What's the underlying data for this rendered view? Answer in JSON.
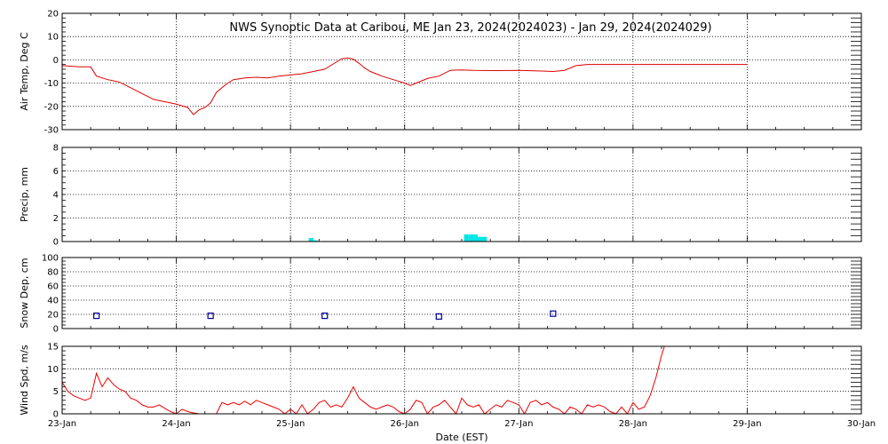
{
  "title": "NWS Synoptic Data at Caribou, ME   Jan 23, 2024(2024023) - Jan 29, 2024(2024029)",
  "xlabel": "Date (EST)",
  "x_ticks": [
    "23-Jan",
    "24-Jan",
    "25-Jan",
    "26-Jan",
    "27-Jan",
    "28-Jan",
    "29-Jan",
    "30-Jan"
  ],
  "colors": {
    "temp": "#dd0000",
    "precip": "#00e5e5",
    "snow": "#000099",
    "wind": "#ee0000",
    "grid": "#000000"
  },
  "chart_data": [
    {
      "type": "line",
      "ylabel": "Air Temp, Deg C",
      "ylim": [
        -30,
        20
      ],
      "yticks": [
        20,
        10,
        0,
        -10,
        -20,
        -30
      ],
      "x_unit": "days since 23-Jan 00:00",
      "x": [
        0,
        0.15,
        0.25,
        0.3,
        0.4,
        0.5,
        0.6,
        0.7,
        0.8,
        0.9,
        1.0,
        1.1,
        1.15,
        1.2,
        1.25,
        1.3,
        1.35,
        1.4,
        1.45,
        1.5,
        1.6,
        1.7,
        1.8,
        1.9,
        2.0,
        2.1,
        2.2,
        2.3,
        2.4,
        2.45,
        2.5,
        2.55,
        2.6,
        2.65,
        2.7,
        2.75,
        2.8,
        2.9,
        3.0,
        3.05,
        3.1,
        3.2,
        3.3,
        3.4,
        3.5,
        3.6,
        3.8,
        4.0,
        4.2,
        4.3,
        4.4,
        4.5,
        4.6,
        4.8,
        5.0,
        5.5,
        6.0
      ],
      "values": [
        -2.5,
        -3,
        -3,
        -7,
        -8.5,
        -9.5,
        -12,
        -14.5,
        -17,
        -18,
        -19,
        -20.5,
        -23.5,
        -21.5,
        -20.5,
        -18.5,
        -14,
        -12,
        -10,
        -8.5,
        -7.8,
        -7.5,
        -7.8,
        -7,
        -6.5,
        -6,
        -5,
        -4,
        -1,
        0.5,
        0.8,
        0.3,
        -1.5,
        -3.5,
        -5,
        -6,
        -7,
        -8.5,
        -10,
        -11,
        -10,
        -8,
        -7,
        -4.5,
        -4.3,
        -4.5,
        -4.6,
        -4.5,
        -4.8,
        -5,
        -4.5,
        -2.5,
        -2,
        -2,
        -2,
        -2,
        -2
      ]
    },
    {
      "type": "bar",
      "ylabel": "Precip, mm",
      "ylim": [
        0,
        8
      ],
      "yticks": [
        8,
        6,
        4,
        2,
        0
      ],
      "x_unit": "days since 23-Jan 00:00",
      "bars": [
        {
          "x0": 2.16,
          "x1": 2.2,
          "value": 0.3
        },
        {
          "x0": 2.2,
          "x1": 2.24,
          "value": 0.1
        },
        {
          "x0": 3.52,
          "x1": 3.56,
          "value": 0.6
        },
        {
          "x0": 3.56,
          "x1": 3.64,
          "value": 0.6
        },
        {
          "x0": 3.64,
          "x1": 3.72,
          "value": 0.4
        }
      ]
    },
    {
      "type": "scatter",
      "ylabel": "Snow Dep, cm",
      "ylim": [
        0,
        100
      ],
      "yticks": [
        100,
        80,
        60,
        40,
        20,
        0
      ],
      "x_unit": "days since 23-Jan 00:00",
      "x": [
        0.3,
        1.3,
        2.3,
        3.3,
        4.3
      ],
      "values": [
        18,
        18,
        18,
        17,
        21
      ]
    },
    {
      "type": "line",
      "ylabel": "Wind Spd, m/s",
      "ylim": [
        0,
        15
      ],
      "yticks": [
        15,
        10,
        5,
        0
      ],
      "x_unit": "days since 23-Jan 00:00",
      "x": [
        0,
        0.05,
        0.1,
        0.15,
        0.2,
        0.25,
        0.3,
        0.35,
        0.4,
        0.45,
        0.5,
        0.55,
        0.6,
        0.65,
        0.7,
        0.75,
        0.8,
        0.85,
        0.9,
        0.95,
        1.0,
        1.05,
        1.1,
        1.15,
        1.2,
        1.25,
        1.3,
        1.35,
        1.4,
        1.45,
        1.5,
        1.55,
        1.6,
        1.65,
        1.7,
        1.75,
        1.8,
        1.85,
        1.9,
        1.95,
        2.0,
        2.05,
        2.1,
        2.15,
        2.2,
        2.25,
        2.3,
        2.35,
        2.4,
        2.45,
        2.5,
        2.55,
        2.6,
        2.65,
        2.7,
        2.75,
        2.8,
        2.85,
        2.9,
        2.95,
        3.0,
        3.05,
        3.1,
        3.15,
        3.2,
        3.25,
        3.3,
        3.35,
        3.4,
        3.45,
        3.5,
        3.55,
        3.6,
        3.65,
        3.7,
        3.75,
        3.8,
        3.85,
        3.9,
        3.95,
        4.0,
        4.05,
        4.1,
        4.15,
        4.2,
        4.25,
        4.3,
        4.35,
        4.4,
        4.45,
        4.5,
        4.55,
        4.6,
        4.65,
        4.7,
        4.75,
        4.8,
        4.85,
        4.9,
        4.95,
        5.0,
        5.05,
        5.1,
        5.15,
        5.2,
        5.25,
        5.3
      ],
      "values": [
        7,
        5,
        4,
        3.5,
        3,
        3.5,
        9,
        6,
        8,
        6.5,
        5.5,
        5,
        3.5,
        3,
        2,
        1.5,
        1.5,
        2,
        1.2,
        0.5,
        0,
        1,
        0.5,
        0.2,
        0,
        0,
        0,
        0,
        2.5,
        2,
        2.5,
        2,
        2.8,
        2,
        3,
        2.5,
        2,
        1.5,
        1,
        0,
        1,
        0,
        2,
        0,
        1,
        2.5,
        3,
        1.5,
        2,
        1.5,
        3.5,
        6,
        3.5,
        2.5,
        1.5,
        1,
        1.5,
        2,
        1.5,
        0.5,
        0,
        1,
        3,
        2.5,
        0,
        1.5,
        2,
        3,
        1.5,
        0,
        3.5,
        2,
        1.5,
        2,
        0,
        1,
        2,
        1.5,
        3,
        2.5,
        2,
        0,
        2.5,
        3,
        2,
        2.5,
        1.5,
        1,
        0,
        1.5,
        1,
        0,
        2,
        1.5,
        2,
        1.5,
        0.5,
        0,
        1.5,
        0,
        2.5,
        1,
        1.5,
        4,
        8,
        13,
        17
      ]
    }
  ]
}
